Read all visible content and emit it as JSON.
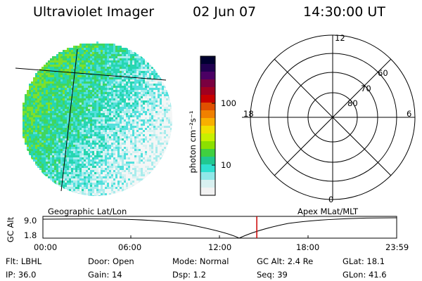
{
  "header": {
    "instrument": "Ultraviolet Imager",
    "date": "02 Jun 07",
    "time": "14:30:00 UT"
  },
  "colorbar": {
    "unit_label": "photon cm⁻²s⁻¹",
    "ticks": [
      "100",
      "10"
    ],
    "colors": [
      "#000030",
      "#200050",
      "#4b0064",
      "#7a0040",
      "#a00020",
      "#c80000",
      "#e05000",
      "#f08000",
      "#f8b000",
      "#f0e000",
      "#c8f000",
      "#8ce000",
      "#40d040",
      "#20c890",
      "#30e0d0",
      "#90e8e8",
      "#d8f0f0",
      "#f2f2f2"
    ]
  },
  "polar_plot": {
    "hour_labels": [
      "12",
      "18",
      "6",
      "0"
    ],
    "lat_labels": [
      "60",
      "70",
      "80"
    ]
  },
  "timeline": {
    "left_title": "Geographic Lat/Lon",
    "right_title": "Apex MLat/MLT",
    "axis_label": "GC Alt",
    "y_ticks": [
      "9.0",
      "1.8"
    ],
    "x_ticks": [
      "00:00",
      "06:00",
      "12:00",
      "18:00",
      "23:59"
    ],
    "marker_time": "14:30",
    "marker_color": "#cc0000"
  },
  "footer": {
    "flt": "Flt: LBHL",
    "ip": "IP: 36.0",
    "door": "Door: Open",
    "gain": "Gain: 14",
    "mode": "Mode: Normal",
    "dsp": "Dsp:     1.2",
    "gcalt": "GC Alt: 2.4 Re",
    "seq": "Seq: 39",
    "glat": "GLat:    18.1",
    "glon": "GLon:    41.6"
  }
}
